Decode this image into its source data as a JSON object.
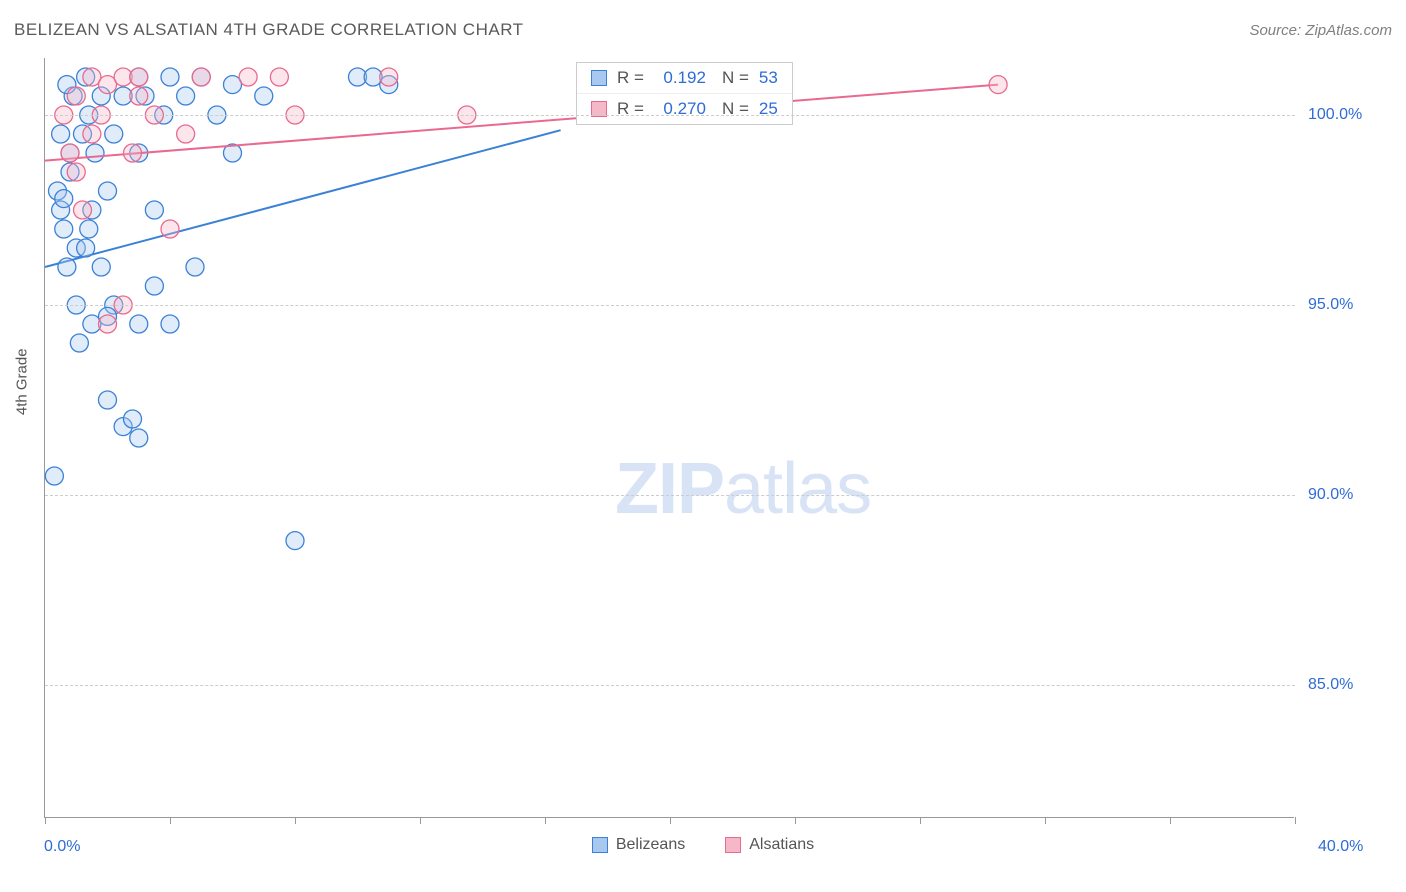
{
  "title": "BELIZEAN VS ALSATIAN 4TH GRADE CORRELATION CHART",
  "source": "Source: ZipAtlas.com",
  "watermark": {
    "bold": "ZIP",
    "rest": "atlas"
  },
  "chart": {
    "type": "scatter",
    "y_axis_title": "4th Grade",
    "plot_bg": "#ffffff",
    "grid_color": "#cccccc",
    "axis_color": "#999999",
    "xlim": [
      0,
      40
    ],
    "ylim": [
      81.5,
      101.5
    ],
    "x_ticks": [
      0,
      4,
      8,
      12,
      16,
      20,
      24,
      28,
      32,
      36,
      40
    ],
    "x_axis_labels": {
      "left": "0.0%",
      "right": "40.0%"
    },
    "y_gridlines": [
      85.0,
      90.0,
      95.0,
      100.0
    ],
    "y_tick_labels": [
      "85.0%",
      "90.0%",
      "95.0%",
      "100.0%"
    ],
    "y_tick_color": "#2e6cd6",
    "marker_radius": 9,
    "marker_fill_opacity": 0.35,
    "marker_stroke_width": 1.3,
    "series": [
      {
        "name": "Belizeans",
        "color_fill": "#a8c8f0",
        "color_stroke": "#3b82d6",
        "points": [
          [
            0.4,
            98.0
          ],
          [
            0.5,
            97.5
          ],
          [
            0.6,
            97.0
          ],
          [
            0.6,
            97.8
          ],
          [
            0.7,
            96.0
          ],
          [
            0.8,
            98.5
          ],
          [
            0.8,
            99.0
          ],
          [
            0.9,
            100.5
          ],
          [
            1.0,
            95.0
          ],
          [
            1.0,
            96.5
          ],
          [
            1.2,
            99.5
          ],
          [
            1.3,
            101.0
          ],
          [
            1.4,
            100.0
          ],
          [
            1.5,
            94.5
          ],
          [
            1.5,
            97.5
          ],
          [
            1.6,
            99.0
          ],
          [
            1.8,
            96.0
          ],
          [
            1.8,
            100.5
          ],
          [
            2.0,
            92.5
          ],
          [
            2.0,
            98.0
          ],
          [
            2.2,
            95.0
          ],
          [
            2.2,
            99.5
          ],
          [
            2.5,
            91.8
          ],
          [
            2.5,
            100.5
          ],
          [
            2.8,
            92.0
          ],
          [
            3.0,
            91.5
          ],
          [
            3.0,
            99.0
          ],
          [
            3.0,
            101.0
          ],
          [
            3.2,
            100.5
          ],
          [
            3.5,
            95.5
          ],
          [
            3.5,
            97.5
          ],
          [
            3.8,
            100.0
          ],
          [
            4.0,
            94.5
          ],
          [
            4.0,
            101.0
          ],
          [
            4.5,
            100.5
          ],
          [
            4.8,
            96.0
          ],
          [
            5.0,
            101.0
          ],
          [
            5.5,
            100.0
          ],
          [
            6.0,
            99.0
          ],
          [
            6.0,
            100.8
          ],
          [
            7.0,
            100.5
          ],
          [
            8.0,
            88.8
          ],
          [
            10.0,
            101.0
          ],
          [
            10.5,
            101.0
          ],
          [
            11.0,
            100.8
          ],
          [
            0.5,
            99.5
          ],
          [
            0.7,
            100.8
          ],
          [
            1.1,
            94.0
          ],
          [
            1.3,
            96.5
          ],
          [
            1.4,
            97.0
          ],
          [
            0.3,
            90.5
          ],
          [
            2.0,
            94.7
          ],
          [
            3.0,
            94.5
          ]
        ],
        "trend": {
          "x1": 0,
          "y1": 96.0,
          "x2": 16.5,
          "y2": 99.6,
          "stroke_width": 2
        },
        "stats": {
          "R": "0.192",
          "N": "53"
        }
      },
      {
        "name": "Alsatians",
        "color_fill": "#f5b8c8",
        "color_stroke": "#e86a8f",
        "points": [
          [
            0.6,
            100.0
          ],
          [
            0.8,
            99.0
          ],
          [
            1.0,
            100.5
          ],
          [
            1.2,
            97.5
          ],
          [
            1.5,
            99.5
          ],
          [
            1.5,
            101.0
          ],
          [
            1.8,
            100.0
          ],
          [
            2.0,
            94.5
          ],
          [
            2.0,
            100.8
          ],
          [
            2.5,
            101.0
          ],
          [
            2.8,
            99.0
          ],
          [
            3.0,
            100.5
          ],
          [
            3.0,
            101.0
          ],
          [
            3.5,
            100.0
          ],
          [
            4.0,
            97.0
          ],
          [
            4.5,
            99.5
          ],
          [
            5.0,
            101.0
          ],
          [
            6.5,
            101.0
          ],
          [
            7.5,
            101.0
          ],
          [
            8.0,
            100.0
          ],
          [
            11.0,
            101.0
          ],
          [
            13.5,
            100.0
          ],
          [
            2.5,
            95.0
          ],
          [
            30.5,
            100.8
          ],
          [
            1.0,
            98.5
          ]
        ],
        "trend": {
          "x1": 0,
          "y1": 98.8,
          "x2": 30.5,
          "y2": 100.8,
          "stroke_width": 2
        },
        "stats": {
          "R": "0.270",
          "N": "25"
        }
      }
    ],
    "legend": [
      {
        "label": "Belizeans",
        "fill": "#a8c8f0",
        "stroke": "#3b82d6"
      },
      {
        "label": "Alsatians",
        "fill": "#f5b8c8",
        "stroke": "#e86a8f"
      }
    ],
    "stats_box": {
      "rows": [
        {
          "swatch_fill": "#a8c8f0",
          "swatch_stroke": "#3b82d6",
          "r_label": "R =",
          "r_val": "0.192",
          "n_label": "N =",
          "n_val": "53"
        },
        {
          "swatch_fill": "#f5b8c8",
          "swatch_stroke": "#e86a8f",
          "r_label": "R =",
          "r_val": "0.270",
          "n_label": "N =",
          "n_val": "25"
        }
      ]
    }
  }
}
